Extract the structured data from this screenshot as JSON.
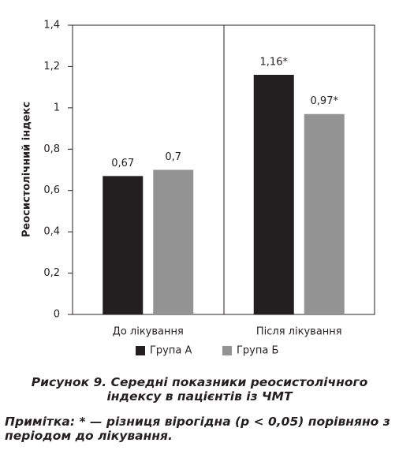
{
  "chart_data": {
    "type": "bar",
    "title": "Рисунок 9. Середні показники реосистолічного індексу в пацієнтів із ЧМТ",
    "note": "Примітка: * — різниця вірогідна (p < 0,05) порівняно з періодом до лікування.",
    "y_label": "Реосистолічний індекс",
    "categories": [
      "До лікування",
      "Після лікування"
    ],
    "series": [
      {
        "name": "Група А",
        "color": "#231f20",
        "values": [
          0.67,
          1.16
        ],
        "value_labels": [
          "0,67",
          "1,16*"
        ]
      },
      {
        "name": "Група Б",
        "color": "#939393",
        "values": [
          0.7,
          0.97
        ],
        "value_labels": [
          "0,7",
          "0,97*"
        ]
      }
    ],
    "ylim": [
      0,
      1.4
    ],
    "yticks": [
      0,
      {
        "value": 0.2,
        "label": "0,2"
      },
      {
        "value": 0.4,
        "label": "0,4"
      },
      {
        "value": 0.6,
        "label": "0,6"
      },
      {
        "value": 0.8,
        "label": "0,8"
      },
      1,
      {
        "value": 1.2,
        "label": "1,2"
      },
      {
        "value": 1.4,
        "label": "1,4"
      }
    ],
    "grid": false
  }
}
